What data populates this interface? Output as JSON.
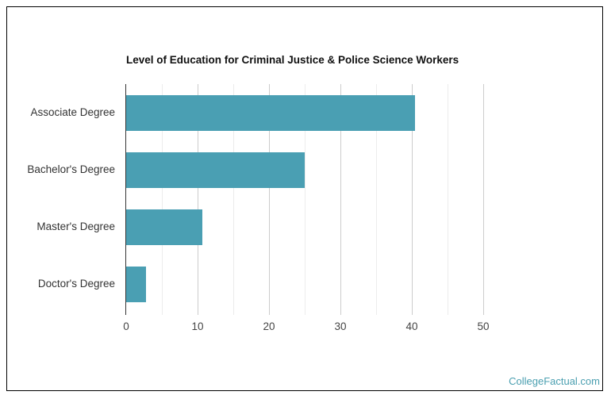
{
  "chart_data": {
    "type": "bar",
    "orientation": "horizontal",
    "title": "Level of Education for Criminal Justice & Police Science Workers",
    "categories": [
      "Associate Degree",
      "Bachelor's Degree",
      "Master's Degree",
      "Doctor's Degree"
    ],
    "values": [
      40.4,
      25.0,
      10.7,
      2.8
    ],
    "xlabel": "",
    "ylabel": "",
    "xlim": [
      0,
      50
    ],
    "xticks": [
      "0",
      "10",
      "20",
      "30",
      "40",
      "50"
    ],
    "grid": true,
    "legend": null,
    "bar_color": "#4a9fb3"
  },
  "credit": "CollegeFactual.com",
  "colors": {
    "bar": "#4a9fb3",
    "credit": "#4a9fb0"
  }
}
